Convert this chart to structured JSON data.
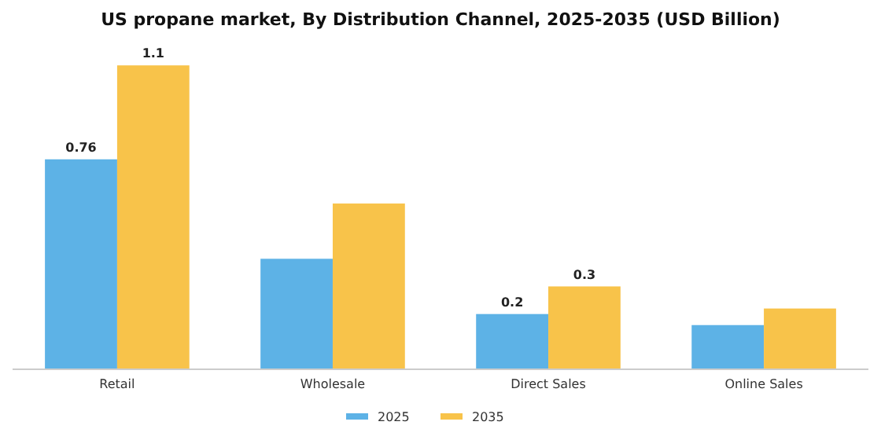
{
  "chart_data": {
    "type": "bar",
    "title": "US propane market, By Distribution Channel, 2025-2035 (USD Billion)",
    "categories": [
      "Retail",
      "Wholesale",
      "Direct Sales",
      "Online Sales"
    ],
    "series": [
      {
        "name": "2025",
        "color": "#5db2e6",
        "values": [
          0.76,
          0.4,
          0.2,
          0.16
        ],
        "value_labels": [
          "0.76",
          null,
          "0.2",
          null
        ]
      },
      {
        "name": "2035",
        "color": "#f8c34a",
        "values": [
          1.1,
          0.6,
          0.3,
          0.22
        ],
        "value_labels": [
          "1.1",
          null,
          "0.3",
          null
        ]
      }
    ],
    "legend": "bottom"
  }
}
